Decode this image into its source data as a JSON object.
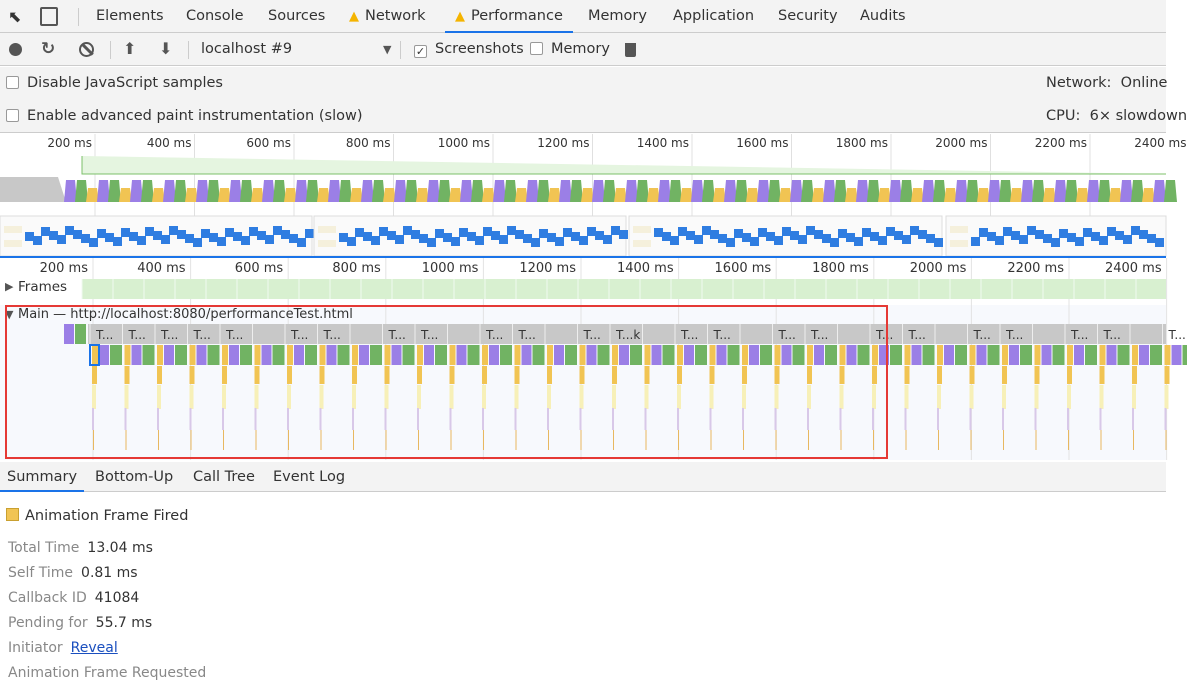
{
  "tabs": [
    {
      "label": "Elements",
      "warn": false
    },
    {
      "label": "Console",
      "warn": false
    },
    {
      "label": "Sources",
      "warn": false
    },
    {
      "label": "Network",
      "warn": true
    },
    {
      "label": "Performance",
      "warn": true,
      "active": true
    },
    {
      "label": "Memory",
      "warn": false
    },
    {
      "label": "Application",
      "warn": false
    },
    {
      "label": "Security",
      "warn": false
    },
    {
      "label": "Audits",
      "warn": false
    }
  ],
  "toolbar": {
    "profile": "localhost #9",
    "screenshots_label": "Screenshots",
    "screenshots_checked": true,
    "memory_label": "Memory",
    "memory_checked": false
  },
  "settings": {
    "disable_js": "Disable JavaScript samples",
    "advanced_paint": "Enable advanced paint instrumentation (slow)",
    "network_label": "Network:",
    "network_value": "Online",
    "cpu_label": "CPU:",
    "cpu_value": "6× slowdown"
  },
  "overview_ticks": [
    "200 ms",
    "400 ms",
    "600 ms",
    "800 ms",
    "1000 ms",
    "1200 ms",
    "1400 ms",
    "1600 ms",
    "1800 ms",
    "2000 ms",
    "2200 ms",
    "2400 ms"
  ],
  "flame_ticks": [
    "200 ms",
    "400 ms",
    "600 ms",
    "800 ms",
    "1000 ms",
    "1200 ms",
    "1400 ms",
    "1600 ms",
    "1800 ms",
    "2000 ms",
    "2200 ms",
    "2400 ms"
  ],
  "tracks": {
    "frames": "Frames",
    "main": "Main — http://localhost:8080/performanceTest.html",
    "task_label": "T...",
    "task_label_k": "T...k"
  },
  "colors": {
    "scripting": "#f1c453",
    "rendering": "#9b7fe6",
    "painting": "#71b363",
    "idle": "#c8c8c8",
    "highlight": "#e53935",
    "selection": "#1a73e8"
  },
  "bottom_tabs": [
    "Summary",
    "Bottom-Up",
    "Call Tree",
    "Event Log"
  ],
  "summary": {
    "title": "Animation Frame Fired",
    "rows": [
      {
        "key": "Total Time",
        "value": "13.04 ms"
      },
      {
        "key": "Self Time",
        "value": "0.81 ms"
      },
      {
        "key": "Callback ID",
        "value": "41084"
      },
      {
        "key": "Pending for",
        "value": "55.7 ms"
      },
      {
        "key": "Initiator",
        "value": "Reveal",
        "link": true
      }
    ],
    "footer": "Animation Frame Requested"
  }
}
